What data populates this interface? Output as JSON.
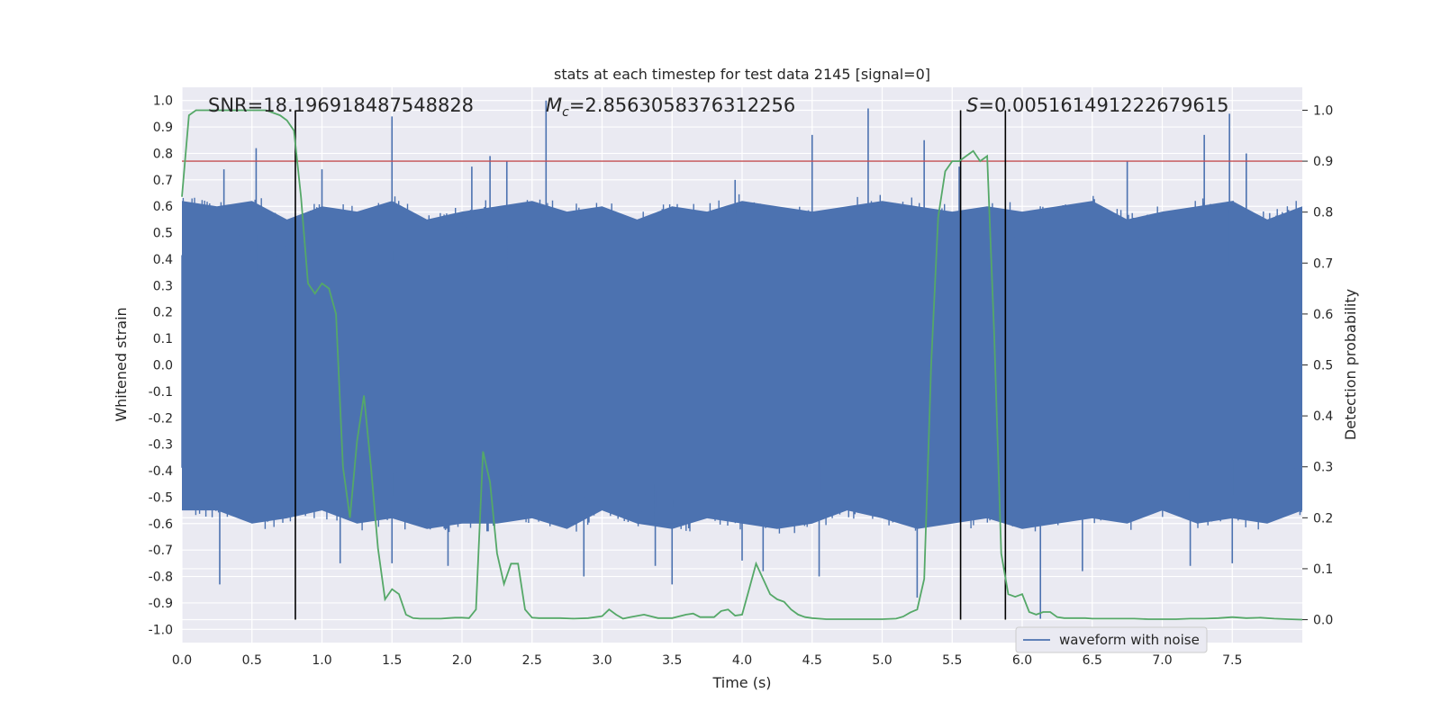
{
  "chart_data": {
    "type": "line",
    "title": "stats at each timestep for test data 2145 [signal=0]",
    "xlabel": "Time (s)",
    "ylabel": "Whitened strain",
    "y2label": "Detection probability",
    "xlim": [
      0,
      8
    ],
    "ylim": [
      -1.05,
      1.05
    ],
    "y2lim": [
      -0.045,
      1.045
    ],
    "xticks": [
      "0.0",
      "0.5",
      "1.0",
      "1.5",
      "2.0",
      "2.5",
      "3.0",
      "3.5",
      "4.0",
      "4.5",
      "5.0",
      "5.5",
      "6.0",
      "6.5",
      "7.0",
      "7.5"
    ],
    "yticks": [
      "1.0",
      "0.9",
      "0.8",
      "0.7",
      "0.6",
      "0.5",
      "0.4",
      "0.3",
      "0.2",
      "0.1",
      "0.0",
      "-0.1",
      "-0.2",
      "-0.3",
      "-0.4",
      "-0.5",
      "-0.6",
      "-0.7",
      "-0.8",
      "-0.9",
      "-1.0"
    ],
    "y2ticks": [
      "1.0",
      "0.9",
      "0.8",
      "0.7",
      "0.6",
      "0.5",
      "0.4",
      "0.3",
      "0.2",
      "0.1",
      "0.0"
    ],
    "grid": true,
    "legend": {
      "position": "bottom-right",
      "entries": [
        "waveform with noise"
      ]
    },
    "annotations": {
      "snr": "SNR=18.196918487548828",
      "mc_symbol": "M",
      "mc_sub": "c",
      "mc_value": "=2.8563058376312256",
      "s_symbol": "S",
      "s_value": "=0.005161491222679615"
    },
    "threshold": {
      "y2": 0.9,
      "color": "#c44e52"
    },
    "vertical_lines_x": [
      0.81,
      5.56,
      5.88
    ],
    "series": [
      {
        "name": "waveform with noise",
        "axis": "left",
        "color": "#4c72b0",
        "envelope": {
          "t": [
            0.0,
            0.25,
            0.5,
            0.75,
            1.0,
            1.25,
            1.5,
            1.75,
            2.0,
            2.25,
            2.5,
            2.75,
            3.0,
            3.25,
            3.5,
            3.75,
            4.0,
            4.25,
            4.5,
            4.75,
            5.0,
            5.25,
            5.5,
            5.75,
            6.0,
            6.25,
            6.5,
            6.75,
            7.0,
            7.25,
            7.5,
            7.75,
            8.0
          ],
          "upper": [
            0.62,
            0.6,
            0.62,
            0.55,
            0.6,
            0.58,
            0.62,
            0.55,
            0.58,
            0.6,
            0.62,
            0.58,
            0.6,
            0.55,
            0.6,
            0.58,
            0.62,
            0.6,
            0.58,
            0.6,
            0.62,
            0.6,
            0.58,
            0.6,
            0.58,
            0.6,
            0.62,
            0.55,
            0.58,
            0.6,
            0.62,
            0.55,
            0.6
          ],
          "lower": [
            -0.55,
            -0.55,
            -0.6,
            -0.58,
            -0.55,
            -0.6,
            -0.58,
            -0.62,
            -0.6,
            -0.6,
            -0.58,
            -0.62,
            -0.55,
            -0.6,
            -0.62,
            -0.58,
            -0.6,
            -0.62,
            -0.6,
            -0.55,
            -0.58,
            -0.62,
            -0.6,
            -0.58,
            -0.62,
            -0.6,
            -0.58,
            -0.6,
            -0.55,
            -0.6,
            -0.58,
            -0.6,
            -0.55
          ]
        },
        "spikes": [
          [
            0.27,
            -0.83
          ],
          [
            0.3,
            0.74
          ],
          [
            0.53,
            0.82
          ],
          [
            1.0,
            0.74
          ],
          [
            1.13,
            -0.75
          ],
          [
            1.5,
            0.94
          ],
          [
            1.5,
            -0.75
          ],
          [
            1.9,
            -0.76
          ],
          [
            2.07,
            0.75
          ],
          [
            2.2,
            0.79
          ],
          [
            2.32,
            0.77
          ],
          [
            2.6,
            1.0
          ],
          [
            2.87,
            -0.8
          ],
          [
            3.38,
            -0.76
          ],
          [
            3.5,
            -0.83
          ],
          [
            3.95,
            0.7
          ],
          [
            4.0,
            -0.74
          ],
          [
            4.15,
            -0.78
          ],
          [
            4.5,
            0.87
          ],
          [
            4.55,
            -0.8
          ],
          [
            4.9,
            0.97
          ],
          [
            5.3,
            0.85
          ],
          [
            5.25,
            -0.88
          ],
          [
            5.55,
            0.75
          ],
          [
            6.13,
            -0.96
          ],
          [
            6.43,
            -0.78
          ],
          [
            6.75,
            0.77
          ],
          [
            7.2,
            -0.76
          ],
          [
            7.3,
            0.87
          ],
          [
            7.48,
            0.95
          ],
          [
            7.6,
            0.8
          ],
          [
            7.5,
            -0.75
          ]
        ]
      },
      {
        "name": "detection probability",
        "axis": "right",
        "color": "#55a868",
        "x": [
          0.0,
          0.05,
          0.1,
          0.2,
          0.3,
          0.4,
          0.5,
          0.6,
          0.7,
          0.75,
          0.8,
          0.85,
          0.9,
          0.95,
          1.0,
          1.05,
          1.1,
          1.15,
          1.2,
          1.25,
          1.3,
          1.35,
          1.4,
          1.45,
          1.5,
          1.55,
          1.6,
          1.65,
          1.7,
          1.75,
          1.8,
          1.85,
          1.9,
          1.95,
          2.0,
          2.05,
          2.1,
          2.15,
          2.2,
          2.25,
          2.3,
          2.35,
          2.4,
          2.45,
          2.5,
          2.55,
          2.6,
          2.7,
          2.8,
          2.9,
          3.0,
          3.05,
          3.1,
          3.15,
          3.2,
          3.3,
          3.4,
          3.5,
          3.6,
          3.65,
          3.7,
          3.8,
          3.85,
          3.9,
          3.95,
          4.0,
          4.05,
          4.1,
          4.2,
          4.25,
          4.3,
          4.35,
          4.4,
          4.45,
          4.5,
          4.6,
          4.7,
          4.8,
          4.9,
          5.0,
          5.1,
          5.15,
          5.2,
          5.25,
          5.3,
          5.35,
          5.4,
          5.45,
          5.5,
          5.55,
          5.6,
          5.65,
          5.7,
          5.75,
          5.8,
          5.85,
          5.9,
          5.95,
          6.0,
          6.05,
          6.1,
          6.15,
          6.2,
          6.25,
          6.3,
          6.35,
          6.4,
          6.45,
          6.5,
          6.55,
          6.6,
          6.7,
          6.8,
          6.9,
          7.0,
          7.1,
          7.2,
          7.3,
          7.4,
          7.5,
          7.6,
          7.7,
          7.8,
          7.9,
          8.0
        ],
        "y": [
          0.83,
          0.99,
          1.0,
          1.0,
          1.0,
          1.0,
          1.0,
          1.0,
          0.99,
          0.98,
          0.96,
          0.83,
          0.66,
          0.64,
          0.66,
          0.65,
          0.6,
          0.3,
          0.2,
          0.35,
          0.44,
          0.3,
          0.14,
          0.04,
          0.06,
          0.05,
          0.01,
          0.003,
          0.002,
          0.002,
          0.002,
          0.002,
          0.003,
          0.004,
          0.004,
          0.003,
          0.02,
          0.33,
          0.27,
          0.13,
          0.07,
          0.11,
          0.11,
          0.02,
          0.004,
          0.003,
          0.003,
          0.003,
          0.002,
          0.003,
          0.007,
          0.02,
          0.01,
          0.002,
          0.005,
          0.01,
          0.003,
          0.003,
          0.01,
          0.012,
          0.005,
          0.005,
          0.017,
          0.02,
          0.008,
          0.01,
          0.06,
          0.11,
          0.05,
          0.04,
          0.035,
          0.02,
          0.01,
          0.005,
          0.003,
          0.001,
          0.001,
          0.001,
          0.001,
          0.001,
          0.002,
          0.006,
          0.014,
          0.02,
          0.08,
          0.5,
          0.79,
          0.88,
          0.9,
          0.9,
          0.91,
          0.92,
          0.9,
          0.91,
          0.56,
          0.13,
          0.05,
          0.045,
          0.05,
          0.015,
          0.01,
          0.015,
          0.015,
          0.005,
          0.003,
          0.003,
          0.003,
          0.003,
          0.002,
          0.002,
          0.002,
          0.002,
          0.002,
          0.001,
          0.001,
          0.001,
          0.002,
          0.002,
          0.003,
          0.005,
          0.003,
          0.004,
          0.002,
          0.001,
          0.0
        ]
      }
    ]
  }
}
